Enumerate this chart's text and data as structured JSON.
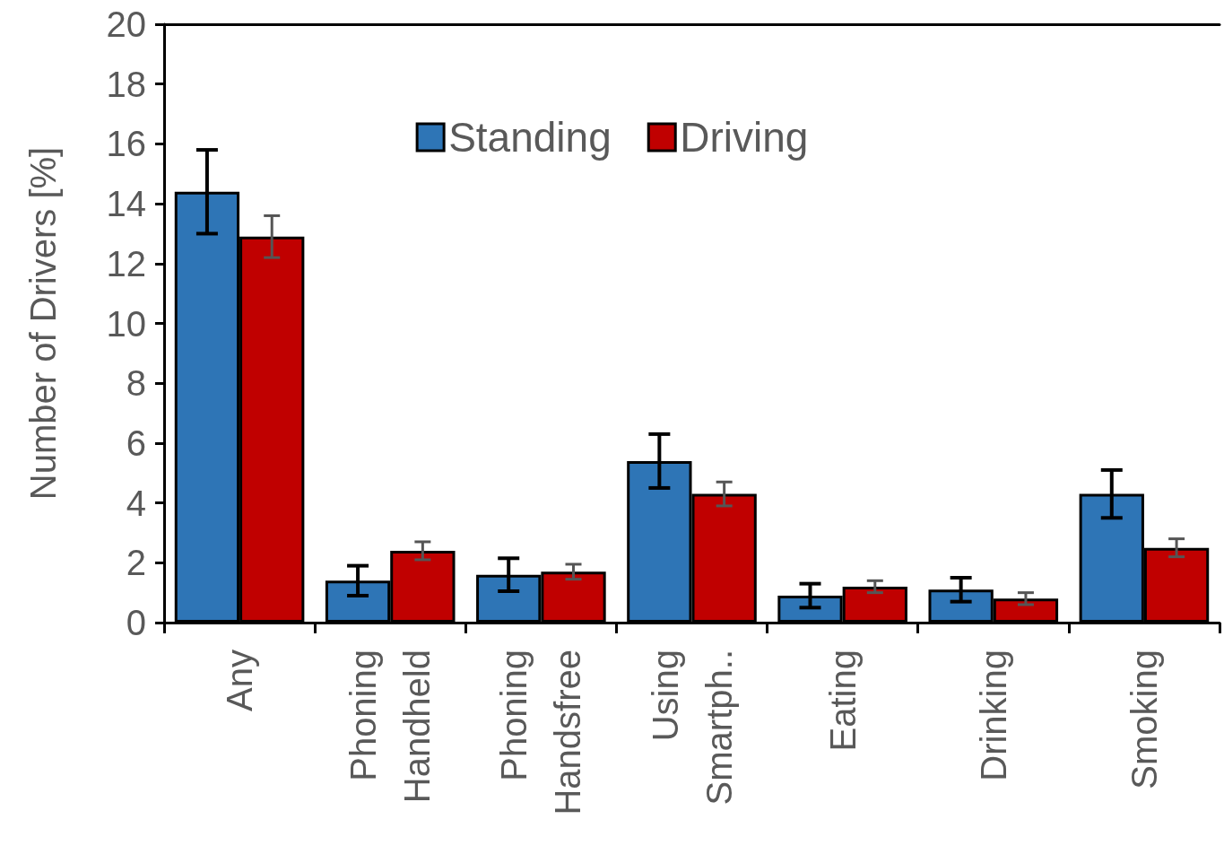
{
  "chart_data": {
    "type": "bar",
    "ylabel": "Number of Drivers [%]",
    "categories": [
      "Any",
      "Phoning\nHandheld",
      "Phoning\nHandsfree",
      "Using\nSmartph..",
      "Eating",
      "Drinking",
      "Smoking"
    ],
    "series": [
      {
        "name": "Standing",
        "color": "#2e75b6",
        "values": [
          14.4,
          1.4,
          1.6,
          5.4,
          0.9,
          1.1,
          4.3
        ],
        "errors": [
          1.4,
          0.5,
          0.55,
          0.9,
          0.4,
          0.4,
          0.8
        ]
      },
      {
        "name": "Driving",
        "color": "#c00000",
        "values": [
          12.9,
          2.4,
          1.7,
          4.3,
          1.2,
          0.8,
          2.5
        ],
        "errors": [
          0.7,
          0.3,
          0.25,
          0.4,
          0.2,
          0.2,
          0.3
        ]
      }
    ],
    "ylim": [
      0,
      20
    ],
    "yticks": [
      0,
      2,
      4,
      6,
      8,
      10,
      12,
      14,
      16,
      18,
      20
    ],
    "grid": false,
    "legend": "top"
  }
}
